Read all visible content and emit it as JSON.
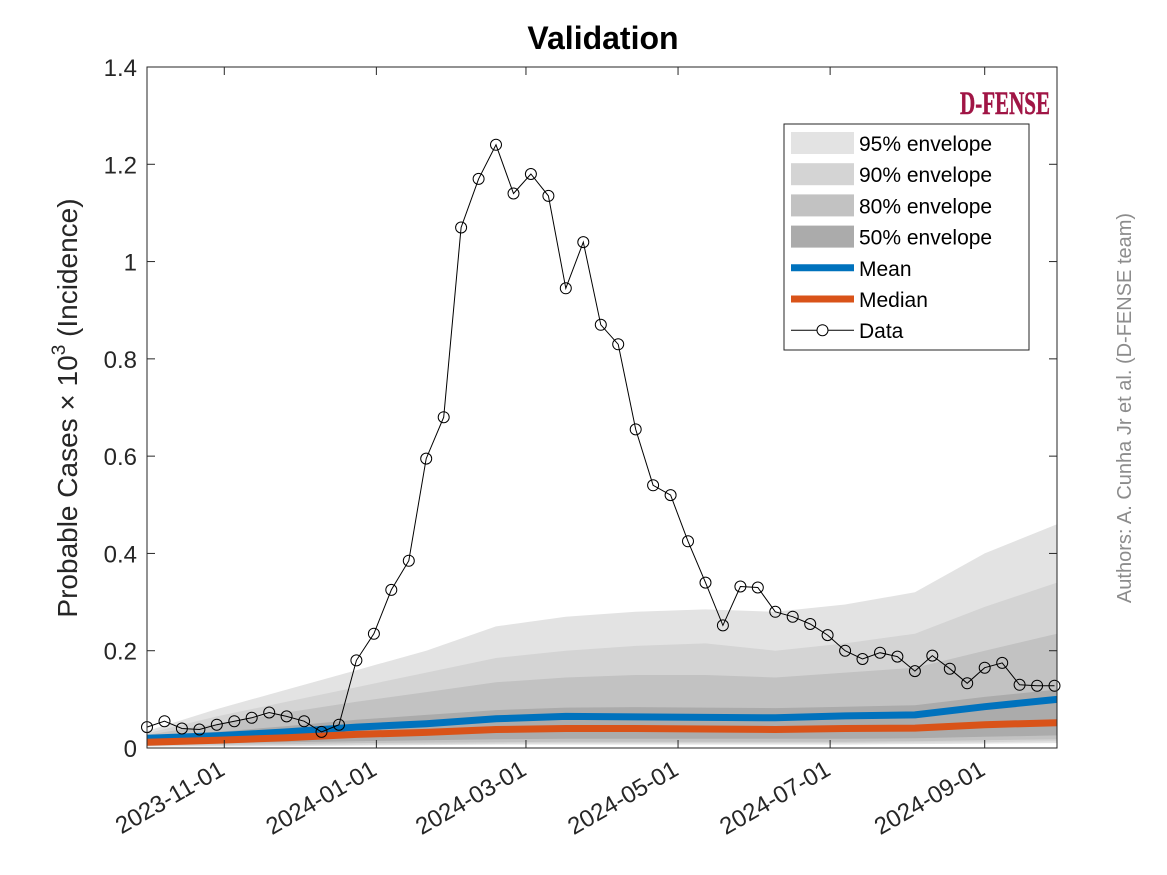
{
  "chart_data": {
    "type": "area",
    "title": "Validation",
    "ylabel_main": "Probable Cases × 10",
    "ylabel_exp": "3",
    "ylabel_suffix": " (Incidence)",
    "side_note": "Authors: A. Cunha Jr et al. (D-FENSE team)",
    "logo_text": "D-FENSE",
    "xlim": [
      "2023-10-01",
      "2024-09-30"
    ],
    "ylim": [
      0,
      1.4
    ],
    "yticks": [
      0,
      0.2,
      0.4,
      0.6,
      0.8,
      1,
      1.2,
      1.4
    ],
    "ytick_labels": [
      "0",
      "0.2",
      "0.4",
      "0.6",
      "0.8",
      "1",
      "1.2",
      "1.4"
    ],
    "xticks": [
      "2023-11-01",
      "2024-01-01",
      "2024-03-01",
      "2024-05-01",
      "2024-07-01",
      "2024-09-01"
    ],
    "legend_position": "top-right",
    "legend": [
      {
        "label": "95% envelope",
        "kind": "patch",
        "color": "#e3e3e3"
      },
      {
        "label": "90% envelope",
        "kind": "patch",
        "color": "#d4d4d4"
      },
      {
        "label": "80% envelope",
        "kind": "patch",
        "color": "#c2c2c2"
      },
      {
        "label": "50% envelope",
        "kind": "patch",
        "color": "#ababab"
      },
      {
        "label": "Mean",
        "kind": "line",
        "color": "#0072bd"
      },
      {
        "label": "Median",
        "kind": "line",
        "color": "#d95319"
      },
      {
        "label": "Data",
        "kind": "marker",
        "color": "#000000"
      }
    ],
    "model_x": [
      "2023-10-01",
      "2023-10-29",
      "2023-11-26",
      "2023-12-24",
      "2024-01-21",
      "2024-02-18",
      "2024-03-17",
      "2024-04-14",
      "2024-05-12",
      "2024-06-09",
      "2024-07-07",
      "2024-08-04",
      "2024-09-01",
      "2024-09-30"
    ],
    "mean": [
      0.02,
      0.025,
      0.033,
      0.043,
      0.05,
      0.06,
      0.065,
      0.064,
      0.063,
      0.062,
      0.066,
      0.068,
      0.085,
      0.1
    ],
    "median": [
      0.012,
      0.016,
      0.021,
      0.028,
      0.032,
      0.038,
      0.04,
      0.04,
      0.039,
      0.038,
      0.04,
      0.041,
      0.048,
      0.052
    ],
    "envelopes": [
      {
        "name": "95% envelope",
        "color": "#e3e3e3",
        "lower": [
          0.003,
          0.003,
          0.004,
          0.005,
          0.006,
          0.007,
          0.007,
          0.007,
          0.007,
          0.007,
          0.007,
          0.008,
          0.009,
          0.01
        ],
        "upper": [
          0.035,
          0.08,
          0.12,
          0.16,
          0.2,
          0.25,
          0.27,
          0.28,
          0.285,
          0.28,
          0.295,
          0.32,
          0.4,
          0.46
        ]
      },
      {
        "name": "90% envelope",
        "color": "#d4d4d4",
        "lower": [
          0.004,
          0.005,
          0.006,
          0.007,
          0.008,
          0.009,
          0.01,
          0.01,
          0.01,
          0.01,
          0.01,
          0.011,
          0.012,
          0.014
        ],
        "upper": [
          0.03,
          0.065,
          0.095,
          0.125,
          0.155,
          0.185,
          0.2,
          0.21,
          0.215,
          0.2,
          0.215,
          0.235,
          0.29,
          0.34
        ]
      },
      {
        "name": "80% envelope",
        "color": "#c2c2c2",
        "lower": [
          0.006,
          0.007,
          0.008,
          0.01,
          0.011,
          0.012,
          0.013,
          0.013,
          0.013,
          0.013,
          0.013,
          0.014,
          0.016,
          0.018
        ],
        "upper": [
          0.027,
          0.05,
          0.073,
          0.095,
          0.115,
          0.135,
          0.145,
          0.15,
          0.15,
          0.145,
          0.155,
          0.165,
          0.2,
          0.235
        ]
      },
      {
        "name": "50% envelope",
        "color": "#ababab",
        "lower": [
          0.008,
          0.01,
          0.012,
          0.014,
          0.016,
          0.018,
          0.019,
          0.019,
          0.019,
          0.019,
          0.019,
          0.02,
          0.023,
          0.026
        ],
        "upper": [
          0.022,
          0.033,
          0.045,
          0.058,
          0.068,
          0.078,
          0.083,
          0.084,
          0.083,
          0.082,
          0.085,
          0.088,
          0.105,
          0.12
        ]
      }
    ],
    "observed": {
      "name": "Data",
      "x": [
        "2023-10-01",
        "2023-10-08",
        "2023-10-15",
        "2023-10-22",
        "2023-10-29",
        "2023-11-05",
        "2023-11-12",
        "2023-11-19",
        "2023-11-26",
        "2023-12-03",
        "2023-12-10",
        "2023-12-17",
        "2023-12-24",
        "2023-12-31",
        "2024-01-07",
        "2024-01-14",
        "2024-01-21",
        "2024-01-28",
        "2024-02-04",
        "2024-02-11",
        "2024-02-18",
        "2024-02-25",
        "2024-03-03",
        "2024-03-10",
        "2024-03-17",
        "2024-03-24",
        "2024-03-31",
        "2024-04-07",
        "2024-04-14",
        "2024-04-21",
        "2024-04-28",
        "2024-05-05",
        "2024-05-12",
        "2024-05-19",
        "2024-05-26",
        "2024-06-02",
        "2024-06-09",
        "2024-06-16",
        "2024-06-23",
        "2024-06-30",
        "2024-07-07",
        "2024-07-14",
        "2024-07-21",
        "2024-07-28",
        "2024-08-04",
        "2024-08-11",
        "2024-08-18",
        "2024-08-25",
        "2024-09-01",
        "2024-09-08",
        "2024-09-15",
        "2024-09-22",
        "2024-09-29"
      ],
      "y": [
        0.043,
        0.055,
        0.04,
        0.038,
        0.048,
        0.055,
        0.062,
        0.073,
        0.065,
        0.055,
        0.033,
        0.048,
        0.18,
        0.235,
        0.325,
        0.385,
        0.595,
        0.68,
        1.07,
        1.17,
        1.24,
        1.14,
        1.18,
        1.135,
        0.945,
        1.04,
        0.87,
        0.83,
        0.655,
        0.54,
        0.52,
        0.425,
        0.34,
        0.252,
        0.332,
        0.33,
        0.28,
        0.27,
        0.255,
        0.232,
        0.2,
        0.183,
        0.196,
        0.188,
        0.158,
        0.19,
        0.163,
        0.133,
        0.165,
        0.175,
        0.13,
        0.128,
        0.128
      ]
    }
  }
}
